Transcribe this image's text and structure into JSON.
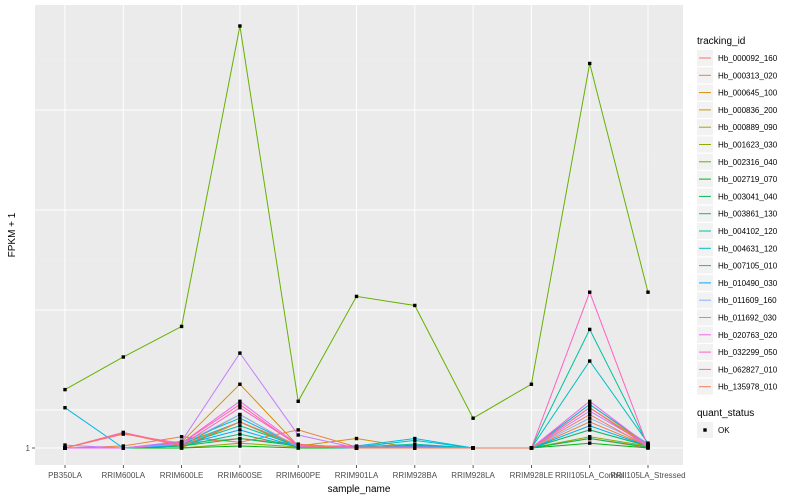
{
  "chart_data": {
    "type": "line",
    "xlabel": "sample_name",
    "ylabel": "FPKM + 1",
    "y_scale": "log",
    "y_ticks": [
      "1"
    ],
    "grid": true,
    "legend_position": "right",
    "categories": [
      "PB350LA",
      "RRIM600LA",
      "RRIM600LE",
      "RRIM600SE",
      "RRIM600PE",
      "RRIM901LA",
      "RRIM928BA",
      "RRIM928LA",
      "RRIM928LE",
      "RRII105LA_Control",
      "RRII105LA_Stressed"
    ],
    "legend_title": "tracking_id",
    "shape_legend": {
      "title": "quant_status",
      "items": [
        "OK"
      ]
    },
    "series": [
      {
        "name": "Hb_000092_160",
        "color": "#F8766D",
        "values": [
          1,
          1,
          1.05,
          1.1,
          1.04,
          1,
          1,
          1,
          1,
          1.1,
          1
        ]
      },
      {
        "name": "Hb_000313_020",
        "color": "#EC8239",
        "values": [
          1,
          1.02,
          1.12,
          1.06,
          1.2,
          1.01,
          1,
          1,
          1,
          1.3,
          1.02
        ]
      },
      {
        "name": "Hb_000645_100",
        "color": "#DB8E00",
        "values": [
          1,
          1,
          1.06,
          1.9,
          1.02,
          1.1,
          1,
          1,
          1,
          1.55,
          1.03
        ]
      },
      {
        "name": "Hb_000836_200",
        "color": "#C79800",
        "values": [
          1,
          1,
          1.02,
          1.4,
          1.01,
          1,
          1,
          1,
          1,
          1.5,
          1.03
        ]
      },
      {
        "name": "Hb_000889_090",
        "color": "#AEA200",
        "values": [
          1,
          1,
          1,
          1.3,
          1,
          1,
          1,
          1,
          1,
          1.2,
          1.02
        ]
      },
      {
        "name": "Hb_001623_030",
        "color": "#8FAA00",
        "values": [
          1,
          1,
          1,
          1.05,
          1.01,
          1,
          1.01,
          1,
          1,
          1.12,
          1.02
        ]
      },
      {
        "name": "Hb_002316_040",
        "color": "#64B200",
        "values": [
          1.8,
          2.5,
          3.4,
          70,
          1.6,
          4.6,
          4.2,
          1.35,
          1.9,
          48,
          4.8
        ]
      },
      {
        "name": "Hb_002719_070",
        "color": "#00B712",
        "values": [
          1,
          1,
          1,
          1.02,
          1,
          1,
          1,
          1,
          1,
          1.05,
          1
        ]
      },
      {
        "name": "Hb_003041_040",
        "color": "#00BC56",
        "values": [
          1,
          1,
          1.02,
          1.1,
          1.02,
          1,
          1.02,
          1,
          1,
          1.1,
          1.01
        ]
      },
      {
        "name": "Hb_003861_130",
        "color": "#00BF7D",
        "values": [
          1,
          1,
          1.02,
          1.15,
          1.01,
          1,
          1.03,
          1,
          1,
          1.2,
          1.02
        ]
      },
      {
        "name": "Hb_004102_120",
        "color": "#00C19F",
        "values": [
          1,
          1,
          1.03,
          1.25,
          1.02,
          1.01,
          1.04,
          1,
          1,
          3.3,
          1.03
        ]
      },
      {
        "name": "Hb_004631_120",
        "color": "#00BFC4",
        "values": [
          1,
          1,
          1.04,
          1.3,
          1.02,
          1.01,
          1.08,
          1,
          1,
          2.4,
          1.05
        ]
      },
      {
        "name": "Hb_007105_010",
        "color": "#00B8E5",
        "values": [
          1.5,
          1,
          1.06,
          1.35,
          1.02,
          1.02,
          1.1,
          1,
          1,
          1.55,
          1.04
        ]
      },
      {
        "name": "Hb_010490_030",
        "color": "#00A9FF",
        "values": [
          1,
          1,
          1.03,
          1.2,
          1.01,
          1,
          1.02,
          1,
          1,
          1.25,
          1.02
        ]
      },
      {
        "name": "Hb_011609_160",
        "color": "#8AB1FF",
        "values": [
          1,
          1,
          1.04,
          1.4,
          1.01,
          1.01,
          1.01,
          1,
          1,
          1.35,
          1.03
        ]
      },
      {
        "name": "Hb_011692_030",
        "color": "#C77CFF",
        "values": [
          1.03,
          1,
          1.07,
          2.6,
          1.14,
          1,
          1,
          1,
          1,
          1.45,
          1.03
        ]
      },
      {
        "name": "Hb_020763_020",
        "color": "#ED68ED",
        "values": [
          1,
          1,
          1.05,
          1.6,
          1.03,
          1.01,
          1.01,
          1,
          1,
          1.6,
          1.03
        ]
      },
      {
        "name": "Hb_032299_050",
        "color": "#FF61C3",
        "values": [
          1,
          1.17,
          1.03,
          1.5,
          1.03,
          1.01,
          1.01,
          1,
          1,
          4.8,
          1.01
        ]
      },
      {
        "name": "Hb_062827_010",
        "color": "#FF67A4",
        "values": [
          1,
          1.15,
          1.05,
          1.55,
          1.02,
          1,
          1,
          1,
          1,
          1.5,
          1.01
        ]
      },
      {
        "name": "Hb_135978_010",
        "color": "#F37B59",
        "values": [
          1,
          1.16,
          1.02,
          1.3,
          1.03,
          1,
          1,
          1,
          1,
          1.4,
          1.01
        ]
      }
    ]
  }
}
